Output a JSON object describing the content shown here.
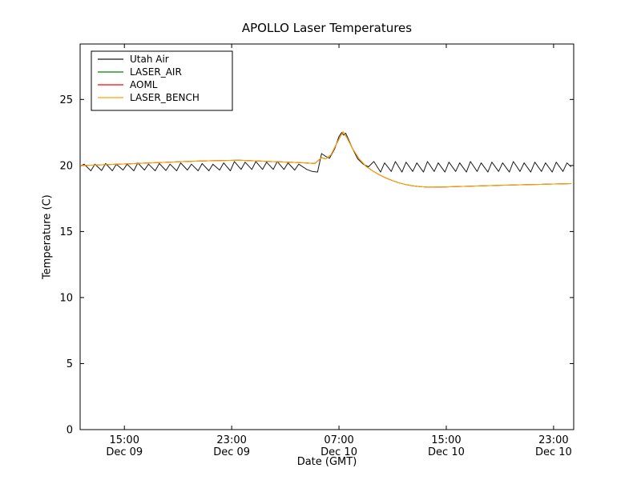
{
  "chart_data": {
    "type": "line",
    "title": "APOLLO Laser Temperatures",
    "xlabel": "Date (GMT)",
    "ylabel": "Temperature (C)",
    "x_unit_note": "hours since Dec 09 00:00 GMT",
    "xlim": [
      11.7,
      48.5
    ],
    "ylim": [
      0,
      29.2
    ],
    "grid": false,
    "legend_position": "upper left",
    "yticks": [
      0,
      5,
      10,
      15,
      20,
      25
    ],
    "xticks": [
      {
        "value": 15,
        "line1": "15:00",
        "line2": "Dec 09"
      },
      {
        "value": 23,
        "line1": "23:00",
        "line2": "Dec 09"
      },
      {
        "value": 31,
        "line1": "07:00",
        "line2": "Dec 10"
      },
      {
        "value": 39,
        "line1": "15:00",
        "line2": "Dec 10"
      },
      {
        "value": 47,
        "line1": "23:00",
        "line2": "Dec 10"
      }
    ],
    "series": [
      {
        "name": "Utah Air",
        "color": "#1a1a1a",
        "points": [
          [
            11.7,
            19.95
          ],
          [
            12.0,
            20.1
          ],
          [
            12.5,
            19.6
          ],
          [
            12.8,
            20.1
          ],
          [
            13.3,
            19.62
          ],
          [
            13.6,
            20.15
          ],
          [
            14.1,
            19.6
          ],
          [
            14.4,
            20.1
          ],
          [
            14.9,
            19.65
          ],
          [
            15.2,
            20.1
          ],
          [
            15.7,
            19.6
          ],
          [
            16.0,
            20.2
          ],
          [
            16.5,
            19.65
          ],
          [
            16.8,
            20.1
          ],
          [
            17.3,
            19.6
          ],
          [
            17.6,
            20.15
          ],
          [
            18.1,
            19.62
          ],
          [
            18.4,
            20.1
          ],
          [
            18.9,
            19.6
          ],
          [
            19.2,
            20.2
          ],
          [
            19.7,
            19.65
          ],
          [
            20.0,
            20.1
          ],
          [
            20.5,
            19.6
          ],
          [
            20.8,
            20.15
          ],
          [
            21.3,
            19.6
          ],
          [
            21.6,
            20.1
          ],
          [
            22.1,
            19.65
          ],
          [
            22.4,
            20.2
          ],
          [
            22.9,
            19.6
          ],
          [
            23.2,
            20.3
          ],
          [
            23.7,
            19.7
          ],
          [
            24.0,
            20.25
          ],
          [
            24.5,
            19.7
          ],
          [
            24.8,
            20.3
          ],
          [
            25.3,
            19.7
          ],
          [
            25.6,
            20.25
          ],
          [
            26.1,
            19.7
          ],
          [
            26.4,
            20.3
          ],
          [
            26.9,
            19.7
          ],
          [
            27.2,
            20.2
          ],
          [
            27.7,
            19.65
          ],
          [
            28.0,
            20.1
          ],
          [
            28.6,
            19.7
          ],
          [
            29.0,
            19.55
          ],
          [
            29.4,
            19.5
          ],
          [
            29.7,
            20.9
          ],
          [
            30.0,
            20.7
          ],
          [
            30.3,
            20.55
          ],
          [
            30.7,
            21.3
          ],
          [
            31.0,
            22.2
          ],
          [
            31.2,
            22.5
          ],
          [
            31.35,
            22.3
          ],
          [
            31.5,
            22.45
          ],
          [
            31.7,
            22.0
          ],
          [
            32.0,
            21.3
          ],
          [
            32.4,
            20.5
          ],
          [
            32.8,
            20.1
          ],
          [
            33.2,
            19.9
          ],
          [
            33.6,
            20.3
          ],
          [
            34.1,
            19.5
          ],
          [
            34.4,
            20.2
          ],
          [
            34.9,
            19.55
          ],
          [
            35.2,
            20.3
          ],
          [
            35.7,
            19.5
          ],
          [
            36.0,
            20.25
          ],
          [
            36.5,
            19.55
          ],
          [
            36.8,
            20.2
          ],
          [
            37.3,
            19.5
          ],
          [
            37.6,
            20.3
          ],
          [
            38.1,
            19.55
          ],
          [
            38.4,
            20.2
          ],
          [
            38.9,
            19.5
          ],
          [
            39.2,
            20.25
          ],
          [
            39.7,
            19.55
          ],
          [
            40.0,
            20.2
          ],
          [
            40.5,
            19.5
          ],
          [
            40.8,
            20.3
          ],
          [
            41.3,
            19.55
          ],
          [
            41.6,
            20.2
          ],
          [
            42.1,
            19.5
          ],
          [
            42.4,
            20.25
          ],
          [
            42.9,
            19.55
          ],
          [
            43.2,
            20.2
          ],
          [
            43.7,
            19.5
          ],
          [
            44.0,
            20.3
          ],
          [
            44.5,
            19.55
          ],
          [
            44.8,
            20.2
          ],
          [
            45.3,
            19.5
          ],
          [
            45.6,
            20.25
          ],
          [
            46.1,
            19.55
          ],
          [
            46.4,
            20.2
          ],
          [
            46.9,
            19.5
          ],
          [
            47.2,
            20.25
          ],
          [
            47.7,
            19.55
          ],
          [
            48.0,
            20.2
          ],
          [
            48.3,
            19.9
          ]
        ]
      },
      {
        "name": "LASER_AIR",
        "color": "#008000",
        "points": [
          [
            11.7,
            20.0
          ],
          [
            12.5,
            20.02
          ],
          [
            13.5,
            20.06
          ],
          [
            14.5,
            20.1
          ],
          [
            15.5,
            20.14
          ],
          [
            16.5,
            20.18
          ],
          [
            17.5,
            20.22
          ],
          [
            18.5,
            20.26
          ],
          [
            19.5,
            20.3
          ],
          [
            20.5,
            20.33
          ],
          [
            21.5,
            20.36
          ],
          [
            22.5,
            20.38
          ],
          [
            23.5,
            20.4
          ],
          [
            24.5,
            20.36
          ],
          [
            25.5,
            20.32
          ],
          [
            26.5,
            20.28
          ],
          [
            27.5,
            20.24
          ],
          [
            28.5,
            20.2
          ],
          [
            29.2,
            20.15
          ],
          [
            29.7,
            20.6
          ],
          [
            30.0,
            20.5
          ],
          [
            30.4,
            20.8
          ],
          [
            30.8,
            21.6
          ],
          [
            31.1,
            22.2
          ],
          [
            31.3,
            22.55
          ],
          [
            31.6,
            22.1
          ],
          [
            32.0,
            21.3
          ],
          [
            32.5,
            20.5
          ],
          [
            33.0,
            19.95
          ],
          [
            33.5,
            19.6
          ],
          [
            34.0,
            19.3
          ],
          [
            34.5,
            19.05
          ],
          [
            35.0,
            18.85
          ],
          [
            35.5,
            18.68
          ],
          [
            36.0,
            18.55
          ],
          [
            36.5,
            18.46
          ],
          [
            37.0,
            18.4
          ],
          [
            37.5,
            18.37
          ],
          [
            38.0,
            18.36
          ],
          [
            39.0,
            18.38
          ],
          [
            40.0,
            18.41
          ],
          [
            41.0,
            18.44
          ],
          [
            42.0,
            18.47
          ],
          [
            43.0,
            18.5
          ],
          [
            44.0,
            18.52
          ],
          [
            45.0,
            18.55
          ],
          [
            46.0,
            18.57
          ],
          [
            47.0,
            18.6
          ],
          [
            48.3,
            18.63
          ]
        ]
      },
      {
        "name": "AOML",
        "color": "#ff0000",
        "points": [
          [
            11.7,
            20.0
          ],
          [
            12.5,
            20.02
          ],
          [
            13.5,
            20.06
          ],
          [
            14.5,
            20.1
          ],
          [
            15.5,
            20.14
          ],
          [
            16.5,
            20.18
          ],
          [
            17.5,
            20.22
          ],
          [
            18.5,
            20.26
          ],
          [
            19.5,
            20.3
          ],
          [
            20.5,
            20.33
          ],
          [
            21.5,
            20.36
          ],
          [
            22.5,
            20.38
          ],
          [
            23.5,
            20.4
          ],
          [
            24.5,
            20.36
          ],
          [
            25.5,
            20.32
          ],
          [
            26.5,
            20.28
          ],
          [
            27.5,
            20.24
          ],
          [
            28.5,
            20.2
          ],
          [
            29.2,
            20.15
          ],
          [
            29.7,
            20.6
          ],
          [
            30.0,
            20.5
          ],
          [
            30.4,
            20.8
          ],
          [
            30.8,
            21.6
          ],
          [
            31.1,
            22.2
          ],
          [
            31.3,
            22.55
          ],
          [
            31.6,
            22.1
          ],
          [
            32.0,
            21.3
          ],
          [
            32.5,
            20.5
          ],
          [
            33.0,
            19.95
          ],
          [
            33.5,
            19.6
          ],
          [
            34.0,
            19.3
          ],
          [
            34.5,
            19.05
          ],
          [
            35.0,
            18.85
          ],
          [
            35.5,
            18.68
          ],
          [
            36.0,
            18.55
          ],
          [
            36.5,
            18.46
          ],
          [
            37.0,
            18.4
          ],
          [
            37.5,
            18.37
          ],
          [
            38.0,
            18.36
          ],
          [
            39.0,
            18.38
          ],
          [
            40.0,
            18.41
          ],
          [
            41.0,
            18.44
          ],
          [
            42.0,
            18.47
          ],
          [
            43.0,
            18.5
          ],
          [
            44.0,
            18.52
          ],
          [
            45.0,
            18.55
          ],
          [
            46.0,
            18.57
          ],
          [
            47.0,
            18.6
          ],
          [
            48.3,
            18.63
          ]
        ]
      },
      {
        "name": "LASER_BENCH",
        "color": "#ffa500",
        "points": [
          [
            11.7,
            20.0
          ],
          [
            12.5,
            20.02
          ],
          [
            13.5,
            20.06
          ],
          [
            14.5,
            20.1
          ],
          [
            15.5,
            20.14
          ],
          [
            16.5,
            20.18
          ],
          [
            17.5,
            20.22
          ],
          [
            18.5,
            20.26
          ],
          [
            19.5,
            20.3
          ],
          [
            20.5,
            20.33
          ],
          [
            21.5,
            20.36
          ],
          [
            22.5,
            20.38
          ],
          [
            23.5,
            20.4
          ],
          [
            24.5,
            20.36
          ],
          [
            25.5,
            20.32
          ],
          [
            26.5,
            20.28
          ],
          [
            27.5,
            20.24
          ],
          [
            28.5,
            20.2
          ],
          [
            29.2,
            20.15
          ],
          [
            29.7,
            20.6
          ],
          [
            30.0,
            20.5
          ],
          [
            30.4,
            20.8
          ],
          [
            30.8,
            21.6
          ],
          [
            31.1,
            22.2
          ],
          [
            31.3,
            22.55
          ],
          [
            31.6,
            22.1
          ],
          [
            32.0,
            21.3
          ],
          [
            32.5,
            20.5
          ],
          [
            33.0,
            19.95
          ],
          [
            33.5,
            19.6
          ],
          [
            34.0,
            19.3
          ],
          [
            34.5,
            19.05
          ],
          [
            35.0,
            18.85
          ],
          [
            35.5,
            18.68
          ],
          [
            36.0,
            18.55
          ],
          [
            36.5,
            18.46
          ],
          [
            37.0,
            18.4
          ],
          [
            37.5,
            18.37
          ],
          [
            38.0,
            18.36
          ],
          [
            39.0,
            18.38
          ],
          [
            40.0,
            18.41
          ],
          [
            41.0,
            18.44
          ],
          [
            42.0,
            18.47
          ],
          [
            43.0,
            18.5
          ],
          [
            44.0,
            18.52
          ],
          [
            45.0,
            18.55
          ],
          [
            46.0,
            18.57
          ],
          [
            47.0,
            18.6
          ],
          [
            48.3,
            18.63
          ]
        ]
      }
    ],
    "legend": [
      "Utah Air",
      "LASER_AIR",
      "AOML",
      "LASER_BENCH"
    ]
  }
}
